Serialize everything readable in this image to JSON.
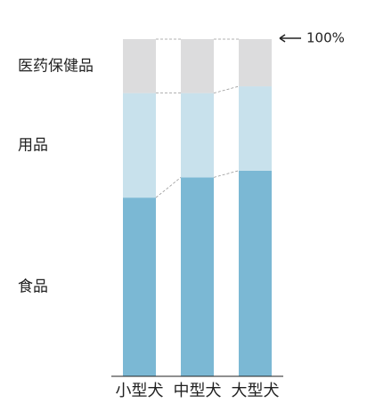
{
  "chart_data": {
    "type": "stacked_bar",
    "categories": [
      "小型犬",
      "中型犬",
      "大型犬"
    ],
    "series": [
      {
        "name": "食品",
        "color": "#7bb8d4",
        "values": [
          53,
          59,
          61
        ]
      },
      {
        "name": "用品",
        "color": "#c8e1ec",
        "values": [
          31,
          25,
          25
        ]
      },
      {
        "name": "医药保健品",
        "color": "#dcdcdd",
        "values": [
          16,
          16,
          14
        ]
      }
    ],
    "ylim": [
      0,
      100
    ],
    "annotation": "100%"
  }
}
